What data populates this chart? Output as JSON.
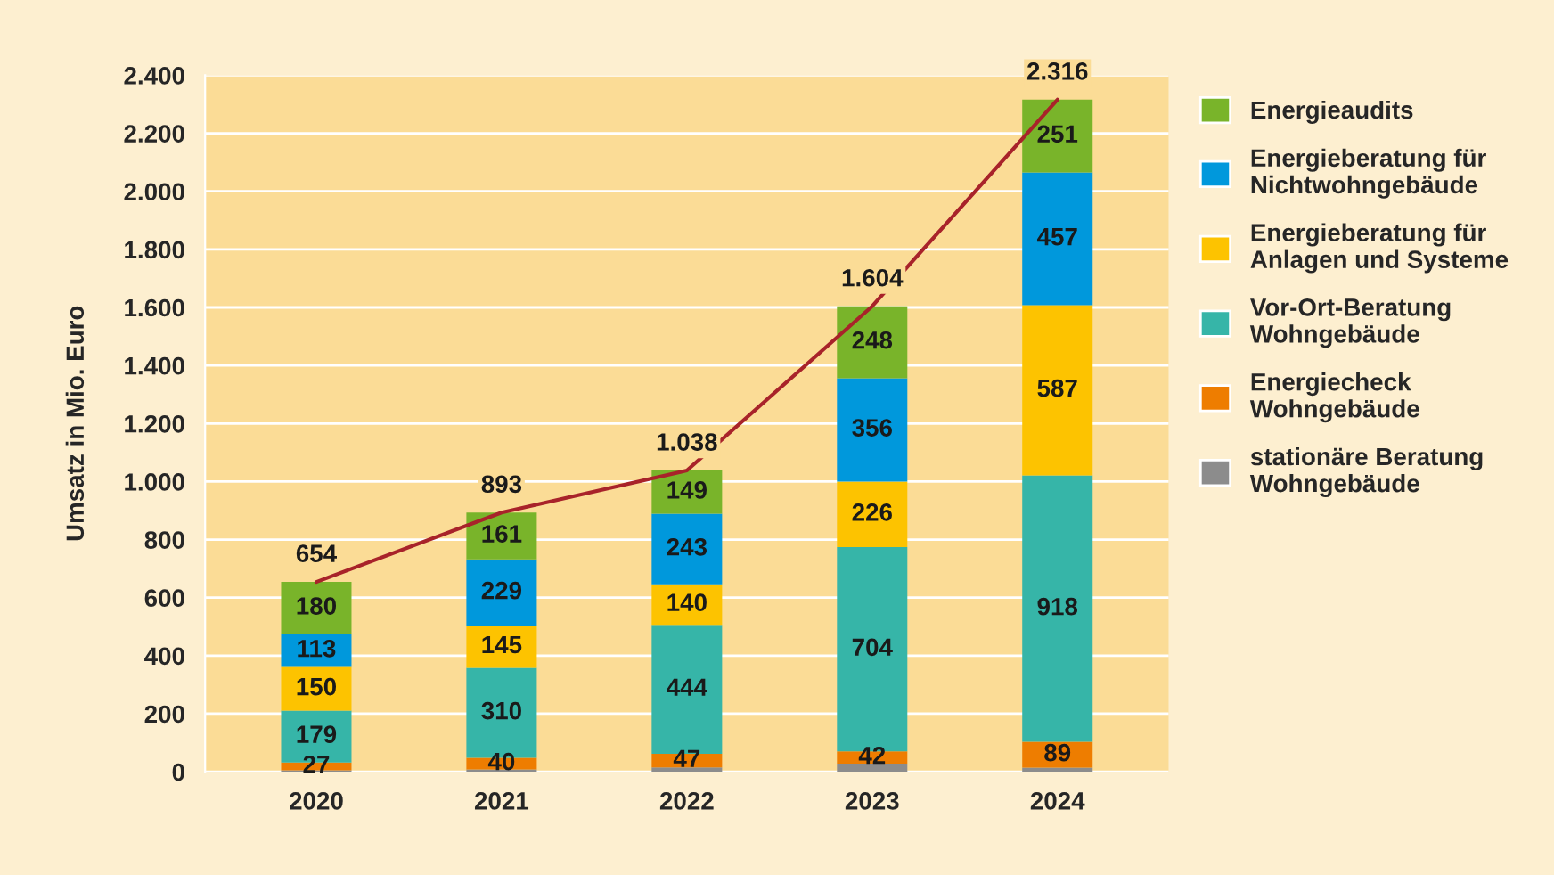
{
  "chart_data": {
    "type": "bar",
    "stacked": true,
    "ylabel": "Umsatz in Mio. Euro",
    "categories": [
      "2020",
      "2021",
      "2022",
      "2023",
      "2024"
    ],
    "series": [
      {
        "name": "stationäre Beratung\nWohngebäude",
        "color": "#8c8c8c",
        "values": [
          5,
          8,
          15,
          28,
          14
        ],
        "value_labels": [
          null,
          null,
          null,
          null,
          null
        ]
      },
      {
        "name": "Energiecheck\nWohngebäude",
        "color": "#ee7d00",
        "values": [
          27,
          40,
          47,
          42,
          89
        ],
        "value_labels": [
          "27",
          "40",
          "47",
          "42",
          "89"
        ]
      },
      {
        "name": "Vor-Ort-Beratung\nWohngebäude",
        "color": "#36b5a8",
        "values": [
          179,
          310,
          444,
          704,
          918
        ],
        "value_labels": [
          "179",
          "310",
          "444",
          "704",
          "918"
        ]
      },
      {
        "name": "Energieberatung für\nAnlagen und Systeme",
        "color": "#fdc300",
        "values": [
          150,
          145,
          140,
          226,
          587
        ],
        "value_labels": [
          "150",
          "145",
          "140",
          "226",
          "587"
        ]
      },
      {
        "name": "Energieberatung für\nNichtwohngebäude",
        "color": "#0098dc",
        "values": [
          113,
          229,
          243,
          356,
          457
        ],
        "value_labels": [
          "113",
          "229",
          "243",
          "356",
          "457"
        ]
      },
      {
        "name": "Energieaudits",
        "color": "#79b42a",
        "values": [
          180,
          161,
          149,
          248,
          251
        ],
        "value_labels": [
          "180",
          "161",
          "149",
          "248",
          "251"
        ]
      },
      {
        "type": "line",
        "color": "#a8232a",
        "values": [
          654,
          893,
          1038,
          1604,
          2316
        ],
        "value_labels": [
          "654",
          "893",
          "1.038",
          "1.604",
          "2.316"
        ]
      }
    ],
    "ylim": [
      0,
      2400
    ],
    "yticks": [
      0,
      200,
      400,
      600,
      800,
      {
        "value": 1000,
        "label": "1.000"
      },
      {
        "value": 1200,
        "label": "1.200"
      },
      {
        "value": 1400,
        "label": "1.400"
      },
      {
        "value": 1600,
        "label": "1.600"
      },
      {
        "value": 1800,
        "label": "1.800"
      },
      {
        "value": 2000,
        "label": "2.000"
      },
      {
        "value": 2200,
        "label": "2.200"
      },
      {
        "value": 2400,
        "label": "2.400"
      }
    ],
    "grid": "y",
    "legend": "right"
  }
}
